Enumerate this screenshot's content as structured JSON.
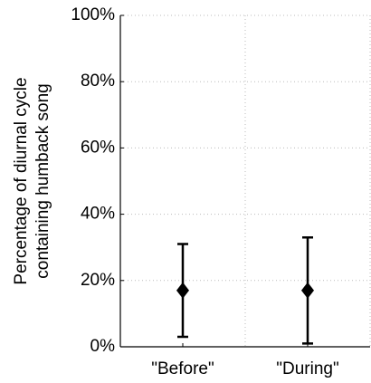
{
  "chart_data": {
    "type": "errorbar",
    "ylabel": [
      "Percentage of diurnal cycle",
      "containing humback song"
    ],
    "categories": [
      "\"Before\"",
      "\"During\""
    ],
    "values": [
      17,
      17
    ],
    "errors": [
      14,
      16
    ],
    "color": "#000000",
    "ylim": [
      0,
      100
    ],
    "yticks": [
      {
        "value": 0,
        "label": "0%"
      },
      {
        "value": 20,
        "label": "20%"
      },
      {
        "value": 40,
        "label": "40%"
      },
      {
        "value": 60,
        "label": "60%"
      },
      {
        "value": 80,
        "label": "80%"
      },
      {
        "value": 100,
        "label": "100%"
      }
    ],
    "grid": true
  }
}
